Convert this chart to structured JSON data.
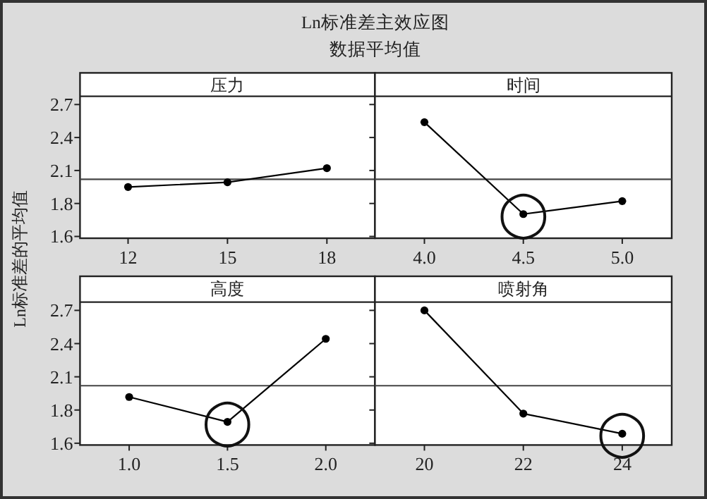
{
  "chart_data": [
    {
      "type": "line",
      "title": "Ln标准差主效应图",
      "subtitle": "数据平均值",
      "ylabel": "Ln标准差的平均值",
      "legend_title": "压力",
      "x": [
        12,
        15,
        18
      ],
      "values": [
        1.98,
        2.02,
        2.14
      ],
      "color": "#000000",
      "marker": "circle",
      "xlim": [
        10.55,
        19.45
      ],
      "xticks": [
        12,
        15,
        18
      ],
      "ylim": [
        1.545,
        2.75
      ],
      "yticks": [
        {
          "value": 1.56,
          "label": "1.6"
        },
        {
          "value": 1.84,
          "label": "1.8"
        },
        {
          "value": 2.12,
          "label": "2.1"
        },
        {
          "value": 2.4,
          "label": "2.4"
        },
        {
          "value": 2.68,
          "label": "2.7"
        }
      ],
      "ref_lines": [
        {
          "axis": "y",
          "value": 2.045
        }
      ]
    },
    {
      "type": "line",
      "legend_title": "时间",
      "x": [
        4.0,
        4.5,
        5.0
      ],
      "values": [
        2.53,
        1.75,
        1.86
      ],
      "color": "#000000",
      "marker": "circle",
      "xlim": [
        3.75,
        5.25
      ],
      "xticks": [
        {
          "value": 4.0,
          "label": "4.0"
        },
        4.5,
        {
          "value": 5.0,
          "label": "5.0"
        }
      ],
      "ylim": [
        1.545,
        2.75
      ],
      "yticks": [
        {
          "value": 1.56,
          "label": null
        },
        {
          "value": 1.84,
          "label": null
        },
        {
          "value": 2.12,
          "label": null
        },
        {
          "value": 2.4,
          "label": null
        },
        {
          "value": 2.68,
          "label": null
        }
      ],
      "tick_labels": "x",
      "ref_lines": [
        {
          "axis": "y",
          "value": 2.045
        }
      ],
      "annotations": [
        {
          "text": "◯",
          "x": 4.5,
          "y": 1.75
        }
      ]
    },
    {
      "type": "line",
      "legend_title": "高度",
      "x": [
        1.0,
        1.5,
        2.0
      ],
      "values": [
        1.95,
        1.74,
        2.44
      ],
      "color": "#000000",
      "marker": "circle",
      "xlim": [
        0.75,
        2.25
      ],
      "xticks": [
        {
          "value": 1.0,
          "label": "1.0"
        },
        1.5,
        {
          "value": 2.0,
          "label": "2.0"
        }
      ],
      "ylim": [
        1.545,
        2.75
      ],
      "yticks": [
        {
          "value": 1.56,
          "label": "1.6"
        },
        {
          "value": 1.84,
          "label": "1.8"
        },
        {
          "value": 2.12,
          "label": "2.1"
        },
        {
          "value": 2.4,
          "label": "2.4"
        },
        {
          "value": 2.68,
          "label": "2.7"
        }
      ],
      "ref_lines": [
        {
          "axis": "y",
          "value": 2.045
        }
      ],
      "annotations": [
        {
          "text": "◯",
          "x": 1.5,
          "y": 1.74
        }
      ]
    },
    {
      "type": "line",
      "legend_title": "喷射角",
      "x": [
        20,
        22,
        24
      ],
      "values": [
        2.68,
        1.81,
        1.64
      ],
      "color": "#000000",
      "marker": "circle",
      "xlim": [
        19,
        25
      ],
      "xticks": [
        20,
        22,
        24
      ],
      "ylim": [
        1.545,
        2.75
      ],
      "yticks": [
        {
          "value": 1.56,
          "label": null
        },
        {
          "value": 1.84,
          "label": null
        },
        {
          "value": 2.12,
          "label": null
        },
        {
          "value": 2.4,
          "label": null
        },
        {
          "value": 2.68,
          "label": null
        }
      ],
      "tick_labels": "x",
      "ref_lines": [
        {
          "axis": "y",
          "value": 2.045
        }
      ],
      "annotations": [
        {
          "text": "◯",
          "x": 24,
          "y": 1.64
        }
      ]
    }
  ]
}
